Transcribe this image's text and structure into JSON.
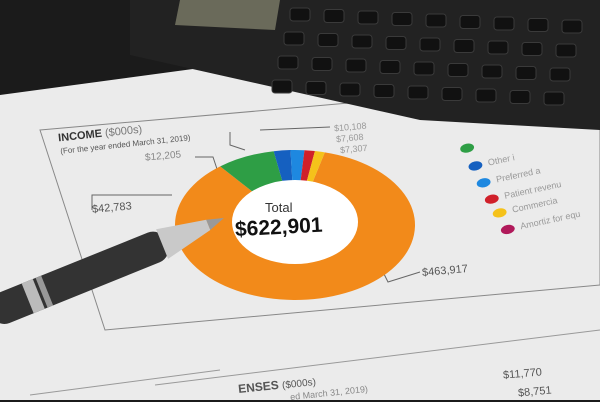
{
  "document": {
    "income_title": "INCOME",
    "income_units": "($000s)",
    "income_subtitle": "(For the year ended March 31, 2019)",
    "expenses_title": "ENSES",
    "expenses_units": "($000s)",
    "expenses_subtitle": "ed March 31, 2019)",
    "expense_values": [
      "$11,770",
      "$8,751"
    ]
  },
  "chart_data": {
    "type": "pie",
    "donut": true,
    "center_label": "Total",
    "total": "$622,901",
    "slices": [
      {
        "label": "$463,917",
        "value": 463917,
        "color": "#f28a1a"
      },
      {
        "label": "$42,783",
        "value": 42783,
        "color": "#2e9e45"
      },
      {
        "label": "$12,205",
        "value": 12205,
        "color": "#1560c0"
      },
      {
        "label": "$10,108",
        "value": 10108,
        "color": "#1e88e0"
      },
      {
        "label": "$7,608",
        "value": 7608,
        "color": "#d0202a"
      },
      {
        "label": "$7,307",
        "value": 7307,
        "color": "#f5c21a"
      }
    ],
    "legend": [
      {
        "text": "",
        "color": "#2e9e45"
      },
      {
        "text": "Other i",
        "color": "#1560c0"
      },
      {
        "text": "Preferred a",
        "color": "#1e88e0"
      },
      {
        "text": "Patient revenu",
        "color": "#d0202a"
      },
      {
        "text": "Commercia",
        "color": "#f5c21a"
      },
      {
        "text": "Amortiz for equ",
        "color": "#b0195a"
      }
    ]
  }
}
